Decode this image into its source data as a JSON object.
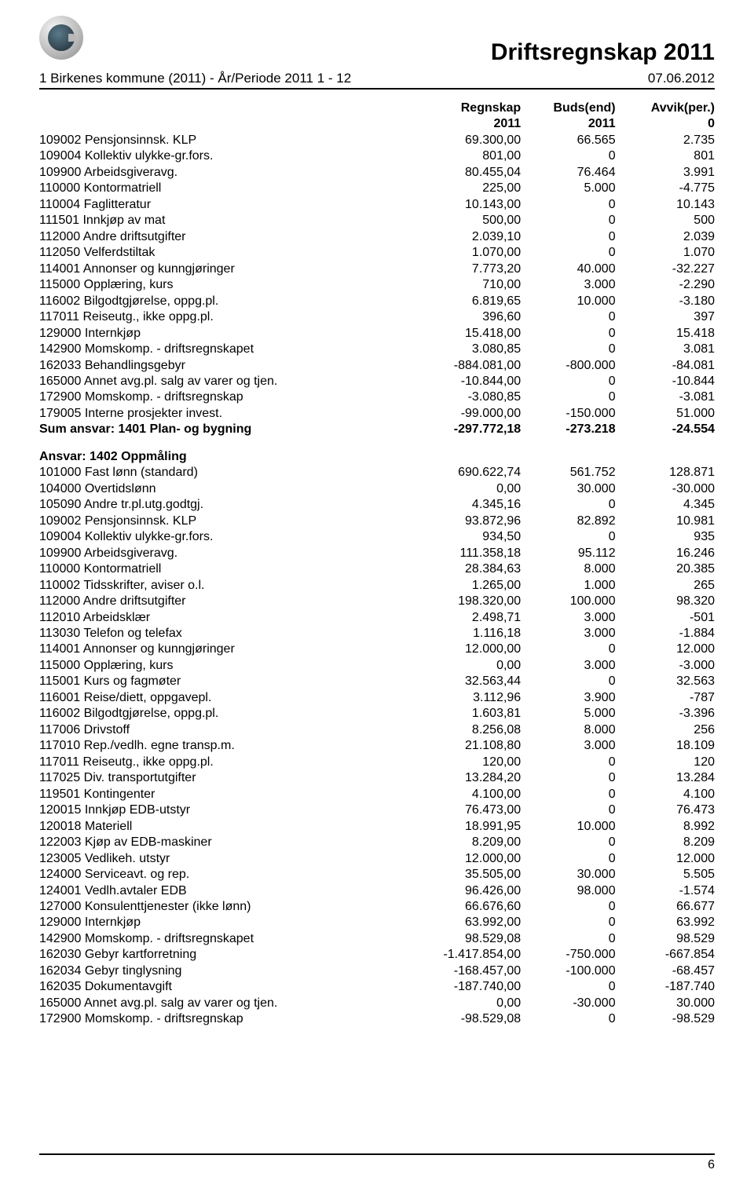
{
  "doc": {
    "title": "Driftsregnskap 2011",
    "subhead_left": "1 Birkenes kommune (2011) - År/Periode 2011 1 - 12",
    "subhead_right": "07.06.2012",
    "page_number": "6"
  },
  "table": {
    "header": {
      "c1": "Regnskap",
      "c2": "Buds(end)",
      "c3": "Avvik(per.)"
    },
    "header2": {
      "c1": "2011",
      "c2": "2011",
      "c3": "0"
    }
  },
  "rows1": [
    [
      "109002 Pensjonsinnsk. KLP",
      "69.300,00",
      "66.565",
      "2.735"
    ],
    [
      "109004 Kollektiv ulykke-gr.fors.",
      "801,00",
      "0",
      "801"
    ],
    [
      "109900 Arbeidsgiveravg.",
      "80.455,04",
      "76.464",
      "3.991"
    ],
    [
      "110000 Kontormatriell",
      "225,00",
      "5.000",
      "-4.775"
    ],
    [
      "110004 Faglitteratur",
      "10.143,00",
      "0",
      "10.143"
    ],
    [
      "111501 Innkjøp av mat",
      "500,00",
      "0",
      "500"
    ],
    [
      "112000 Andre driftsutgifter",
      "2.039,10",
      "0",
      "2.039"
    ],
    [
      "112050 Velferdstiltak",
      "1.070,00",
      "0",
      "1.070"
    ],
    [
      "114001 Annonser og kunngjøringer",
      "7.773,20",
      "40.000",
      "-32.227"
    ],
    [
      "115000 Opplæring, kurs",
      "710,00",
      "3.000",
      "-2.290"
    ],
    [
      "116002 Bilgodtgjørelse, oppg.pl.",
      "6.819,65",
      "10.000",
      "-3.180"
    ],
    [
      "117011 Reiseutg., ikke oppg.pl.",
      "396,60",
      "0",
      "397"
    ],
    [
      "129000 Internkjøp",
      "15.418,00",
      "0",
      "15.418"
    ],
    [
      "142900 Momskomp. - driftsregnskapet",
      "3.080,85",
      "0",
      "3.081"
    ],
    [
      "162033 Behandlingsgebyr",
      "-884.081,00",
      "-800.000",
      "-84.081"
    ],
    [
      "165000 Annet avg.pl. salg av varer og tjen.",
      "-10.844,00",
      "0",
      "-10.844"
    ],
    [
      "172900 Momskomp. - driftsregnskap",
      "-3.080,85",
      "0",
      "-3.081"
    ],
    [
      "179005 Interne prosjekter invest.",
      "-99.000,00",
      "-150.000",
      "51.000"
    ]
  ],
  "sum1": [
    "Sum ansvar: 1401 Plan- og bygning",
    "-297.772,18",
    "-273.218",
    "-24.554"
  ],
  "section2_title": "Ansvar: 1402 Oppmåling",
  "rows2": [
    [
      "101000 Fast lønn (standard)",
      "690.622,74",
      "561.752",
      "128.871"
    ],
    [
      "104000 Overtidslønn",
      "0,00",
      "30.000",
      "-30.000"
    ],
    [
      "105090 Andre tr.pl.utg.godtgj.",
      "4.345,16",
      "0",
      "4.345"
    ],
    [
      "109002 Pensjonsinnsk. KLP",
      "93.872,96",
      "82.892",
      "10.981"
    ],
    [
      "109004 Kollektiv ulykke-gr.fors.",
      "934,50",
      "0",
      "935"
    ],
    [
      "109900 Arbeidsgiveravg.",
      "111.358,18",
      "95.112",
      "16.246"
    ],
    [
      "110000 Kontormatriell",
      "28.384,63",
      "8.000",
      "20.385"
    ],
    [
      "110002 Tidsskrifter, aviser o.l.",
      "1.265,00",
      "1.000",
      "265"
    ],
    [
      "112000 Andre driftsutgifter",
      "198.320,00",
      "100.000",
      "98.320"
    ],
    [
      "112010 Arbeidsklær",
      "2.498,71",
      "3.000",
      "-501"
    ],
    [
      "113030 Telefon og telefax",
      "1.116,18",
      "3.000",
      "-1.884"
    ],
    [
      "114001 Annonser og kunngjøringer",
      "12.000,00",
      "0",
      "12.000"
    ],
    [
      "115000 Opplæring, kurs",
      "0,00",
      "3.000",
      "-3.000"
    ],
    [
      "115001 Kurs og fagmøter",
      "32.563,44",
      "0",
      "32.563"
    ],
    [
      "116001 Reise/diett, oppgavepl.",
      "3.112,96",
      "3.900",
      "-787"
    ],
    [
      "116002 Bilgodtgjørelse, oppg.pl.",
      "1.603,81",
      "5.000",
      "-3.396"
    ],
    [
      "117006 Drivstoff",
      "8.256,08",
      "8.000",
      "256"
    ],
    [
      "117010 Rep./vedlh. egne transp.m.",
      "21.108,80",
      "3.000",
      "18.109"
    ],
    [
      "117011 Reiseutg., ikke oppg.pl.",
      "120,00",
      "0",
      "120"
    ],
    [
      "117025 Div. transportutgifter",
      "13.284,20",
      "0",
      "13.284"
    ],
    [
      "119501 Kontingenter",
      "4.100,00",
      "0",
      "4.100"
    ],
    [
      "120015 Innkjøp EDB-utstyr",
      "76.473,00",
      "0",
      "76.473"
    ],
    [
      "120018 Materiell",
      "18.991,95",
      "10.000",
      "8.992"
    ],
    [
      "122003 Kjøp av EDB-maskiner",
      "8.209,00",
      "0",
      "8.209"
    ],
    [
      "123005 Vedlikeh. utstyr",
      "12.000,00",
      "0",
      "12.000"
    ],
    [
      "124000 Serviceavt. og rep.",
      "35.505,00",
      "30.000",
      "5.505"
    ],
    [
      "124001 Vedlh.avtaler EDB",
      "96.426,00",
      "98.000",
      "-1.574"
    ],
    [
      "127000 Konsulenttjenester (ikke lønn)",
      "66.676,60",
      "0",
      "66.677"
    ],
    [
      "129000 Internkjøp",
      "63.992,00",
      "0",
      "63.992"
    ],
    [
      "142900 Momskomp. - driftsregnskapet",
      "98.529,08",
      "0",
      "98.529"
    ],
    [
      "162030 Gebyr kartforretning",
      "-1.417.854,00",
      "-750.000",
      "-667.854"
    ],
    [
      "162034 Gebyr tinglysning",
      "-168.457,00",
      "-100.000",
      "-68.457"
    ],
    [
      "162035 Dokumentavgift",
      "-187.740,00",
      "0",
      "-187.740"
    ],
    [
      "165000 Annet avg.pl. salg av varer og tjen.",
      "0,00",
      "-30.000",
      "30.000"
    ],
    [
      "172900 Momskomp. - driftsregnskap",
      "-98.529,08",
      "0",
      "-98.529"
    ]
  ]
}
